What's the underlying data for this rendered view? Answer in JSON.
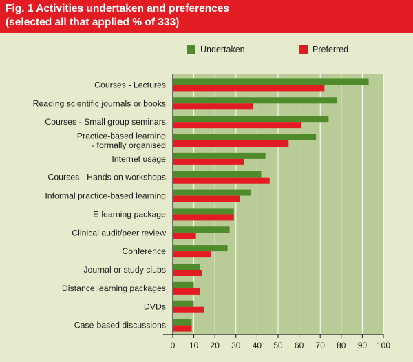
{
  "figure": {
    "title_line1": "Fig. 1  Activities undertaken and preferences",
    "title_line2": "(selected all that applied % of 333)"
  },
  "colors": {
    "header": "#e31b23",
    "page_bg": "#e7ebcd",
    "plot_bg": "#b9cb96",
    "grid": "#ffffff",
    "undertaken": "#4f8a2b",
    "preferred": "#e31b23"
  },
  "chart_data": {
    "type": "bar",
    "orientation": "horizontal",
    "title": "Activities undertaken and preferences (selected all that applied % of 333)",
    "xlabel": "",
    "ylabel": "",
    "xlim": [
      0,
      100
    ],
    "xticks": [
      0,
      10,
      20,
      30,
      40,
      50,
      60,
      70,
      80,
      90,
      100
    ],
    "grid": true,
    "legend_position": "top",
    "categories": [
      [
        "Courses - Lectures"
      ],
      [
        "Reading scientific journals or books"
      ],
      [
        "Courses - Small group seminars"
      ],
      [
        "Practice-based learning",
        "- formally organised"
      ],
      [
        "Internet usage"
      ],
      [
        "Courses - Hands on workshops"
      ],
      [
        "Informal practice-based learning"
      ],
      [
        "E-learning package"
      ],
      [
        "Clinical audit/peer review"
      ],
      [
        "Conference"
      ],
      [
        "Journal or study clubs"
      ],
      [
        "Distance learning packages"
      ],
      [
        "DVDs"
      ],
      [
        "Case-based discussions"
      ]
    ],
    "series": [
      {
        "name": "Undertaken",
        "values": [
          93,
          78,
          74,
          68,
          44,
          42,
          37,
          29,
          27,
          26,
          13,
          10,
          10,
          9
        ]
      },
      {
        "name": "Preferred",
        "values": [
          72,
          38,
          61,
          55,
          34,
          46,
          32,
          29,
          11,
          18,
          14,
          13,
          15,
          9
        ]
      }
    ]
  }
}
